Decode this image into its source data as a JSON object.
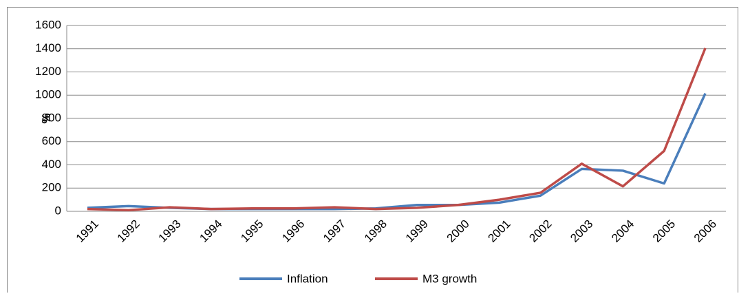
{
  "chart_data": {
    "type": "line",
    "y_label": "%",
    "categories": [
      "1991",
      "1992",
      "1993",
      "1994",
      "1995",
      "1996",
      "1997",
      "1998",
      "1999",
      "2000",
      "2001",
      "2002",
      "2003",
      "2004",
      "2005",
      "2006"
    ],
    "series": [
      {
        "name": "Inflation",
        "color": "#4a7ebb",
        "values": [
          30,
          45,
          30,
          20,
          20,
          20,
          20,
          25,
          55,
          55,
          75,
          135,
          365,
          350,
          240,
          1015
        ]
      },
      {
        "name": "M3 growth",
        "color": "#be4b48",
        "values": [
          20,
          10,
          35,
          20,
          25,
          25,
          35,
          20,
          30,
          55,
          100,
          160,
          410,
          215,
          520,
          1405
        ]
      }
    ],
    "ylim": [
      0,
      1600
    ],
    "yticks": [
      0,
      200,
      400,
      600,
      800,
      1000,
      1200,
      1400,
      1600
    ],
    "grid": true,
    "legend": "bottom"
  }
}
